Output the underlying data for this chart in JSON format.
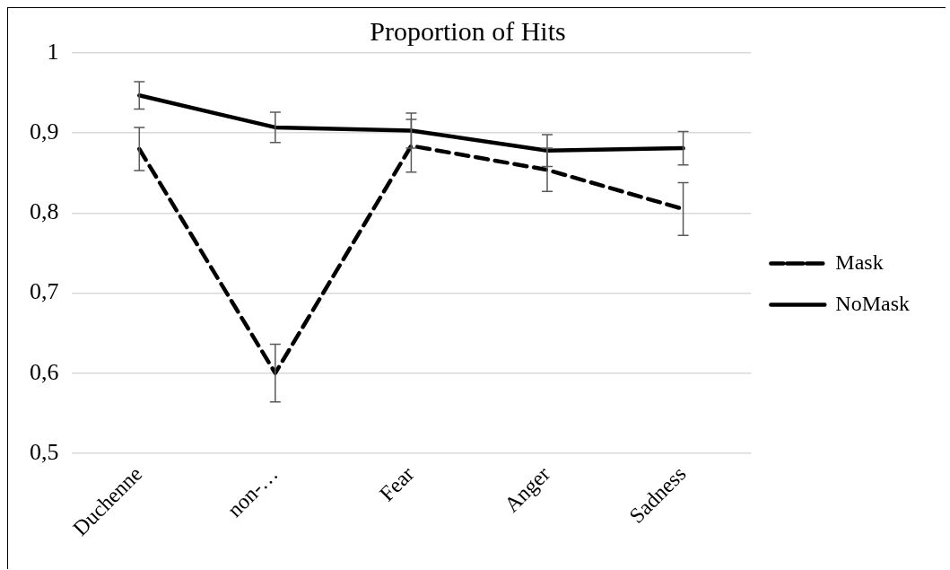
{
  "chart_data": {
    "type": "line",
    "title": "Proportion of Hits",
    "categories": [
      "Duchenne",
      "non-…",
      "Fear",
      "Anger",
      "Sadness"
    ],
    "series": [
      {
        "name": "Mask",
        "color": "#000000",
        "line_style": "dashed",
        "values": [
          0.88,
          0.6,
          0.884,
          0.854,
          0.805
        ],
        "errors": [
          0.027,
          0.036,
          0.033,
          0.027,
          0.033
        ]
      },
      {
        "name": "NoMask",
        "color": "#000000",
        "line_style": "solid",
        "values": [
          0.947,
          0.907,
          0.903,
          0.878,
          0.881
        ],
        "errors": [
          0.017,
          0.019,
          0.022,
          0.02,
          0.021
        ]
      }
    ],
    "ylim": [
      0.5,
      1
    ],
    "yticks": [
      {
        "value": 0.5,
        "label": "0,5"
      },
      {
        "value": 0.6,
        "label": "0,6"
      },
      {
        "value": 0.7,
        "label": "0,7"
      },
      {
        "value": 0.8,
        "label": "0,8"
      },
      {
        "value": 0.9,
        "label": "0,9"
      },
      {
        "value": 1,
        "label": "1"
      }
    ],
    "grid": "y",
    "legend": "right",
    "marker": "none"
  }
}
